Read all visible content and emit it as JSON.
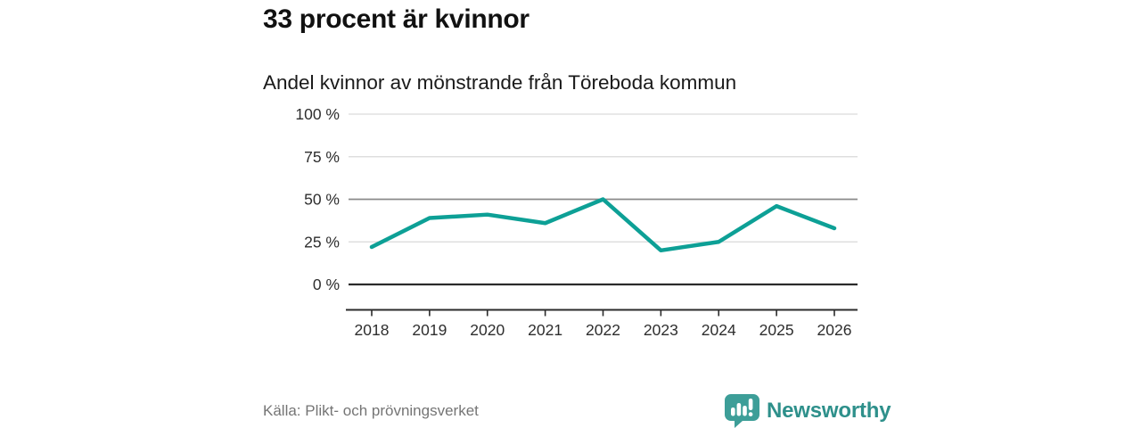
{
  "header": {
    "title": "33 procent är kvinnor",
    "subtitle": "Andel kvinnor av mönstrande från Töreboda kommun"
  },
  "chart_data": {
    "type": "line",
    "title": "33 procent är kvinnor",
    "subtitle": "Andel kvinnor av mönstrande från Töreboda kommun",
    "categories": [
      "2018",
      "2019",
      "2020",
      "2021",
      "2022",
      "2023",
      "2024",
      "2025",
      "2026"
    ],
    "series": [
      {
        "name": "Andel kvinnor av mönstrande",
        "values": [
          22,
          39,
          41,
          36,
          50,
          20,
          25,
          46,
          33
        ]
      }
    ],
    "unit": "%",
    "xlabel": "",
    "ylabel": "",
    "ylim": [
      0,
      100
    ],
    "yticks": [
      0,
      25,
      50,
      75,
      100
    ],
    "ytick_labels": [
      "0 %",
      "25 %",
      "50 %",
      "75 %",
      "100 %"
    ],
    "grid": "horizontal",
    "legend": "none",
    "baseline_gridline": 0,
    "highlight_gridline": 50
  },
  "footer": {
    "source": "Källa: Plikt- och prövningsverket",
    "brand": "Newsworthy",
    "logo_icon": "newsworthy-chart-bubble-icon"
  },
  "colors": {
    "line": "#0da096",
    "grid_light": "#d9d9d9",
    "grid_mid": "#8a8a8a",
    "axis_dark": "#2b2b2b",
    "tick_text": "#2e2e2e",
    "title_text": "#111111",
    "source_text": "#757575",
    "logo_teal": "#3d9e98",
    "brand_teal": "#2e908b"
  }
}
